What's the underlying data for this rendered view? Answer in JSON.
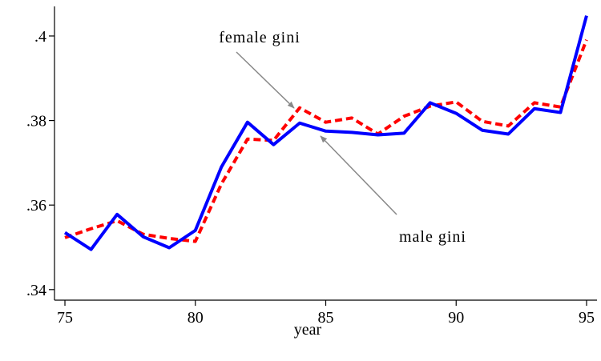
{
  "chart_data": {
    "type": "line",
    "xlabel": "year",
    "x": [
      75,
      76,
      77,
      78,
      79,
      80,
      81,
      82,
      83,
      84,
      85,
      86,
      87,
      88,
      89,
      90,
      91,
      92,
      93,
      94,
      95
    ],
    "series": [
      {
        "name": "male gini",
        "color": "#0000ff",
        "style": "solid",
        "values": [
          0.3535,
          0.3495,
          0.3578,
          0.3525,
          0.3499,
          0.354,
          0.369,
          0.3796,
          0.3743,
          0.3794,
          0.3775,
          0.3772,
          0.3766,
          0.377,
          0.3842,
          0.3817,
          0.3777,
          0.3768,
          0.3828,
          0.3819,
          0.4048
        ]
      },
      {
        "name": "female gini",
        "color": "#ff0000",
        "style": "dashed",
        "values": [
          0.3523,
          0.3544,
          0.3563,
          0.3531,
          0.3521,
          0.3514,
          0.365,
          0.3756,
          0.3753,
          0.383,
          0.3796,
          0.3806,
          0.3768,
          0.381,
          0.3834,
          0.3844,
          0.3798,
          0.3787,
          0.3842,
          0.3832,
          0.3991
        ]
      }
    ],
    "xlim": [
      74.6,
      95.4
    ],
    "ylim": [
      0.3375,
      0.407
    ],
    "xticks": [
      75,
      80,
      85,
      90,
      95
    ],
    "yticks": [
      {
        "value": 0.34,
        "label": ".34"
      },
      {
        "value": 0.36,
        "label": ".36"
      },
      {
        "value": 0.38,
        "label": ".38"
      },
      {
        "value": 0.4,
        "label": ".4"
      }
    ]
  }
}
